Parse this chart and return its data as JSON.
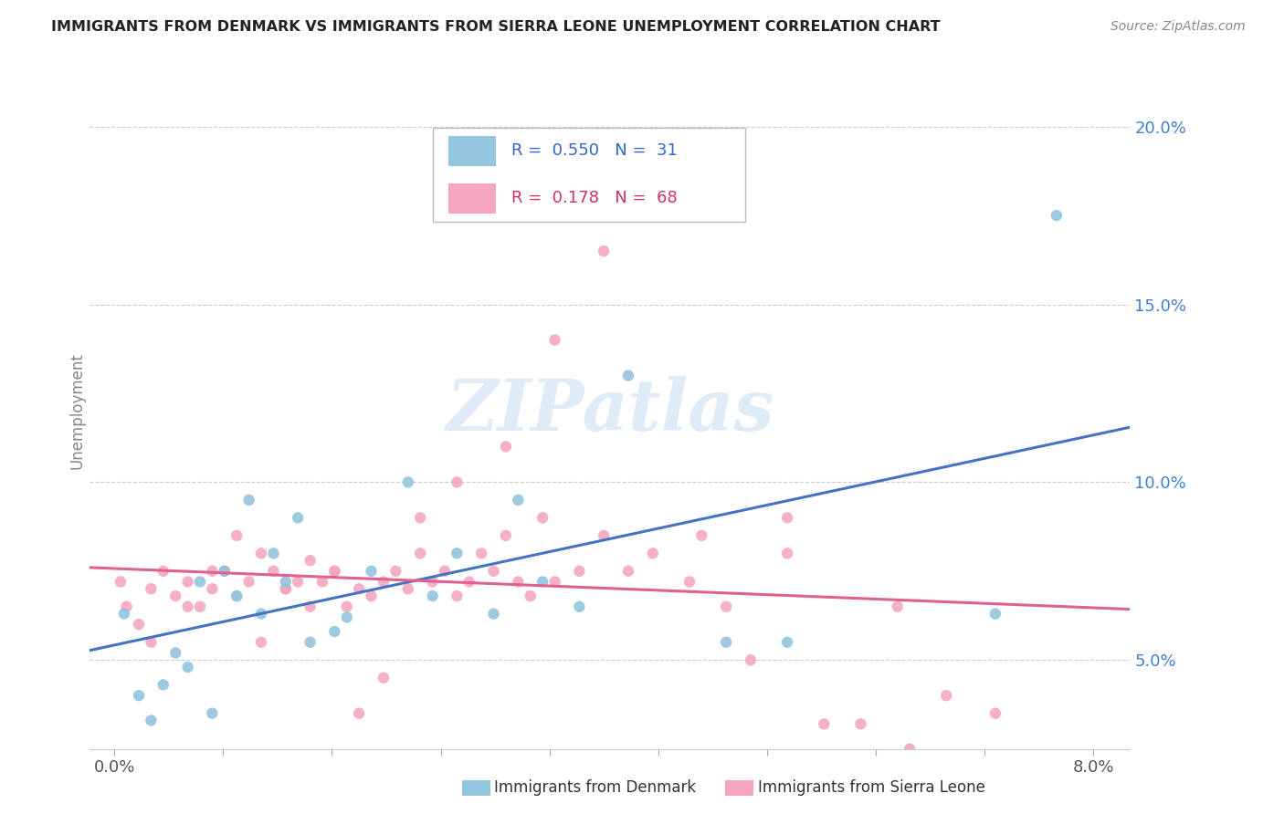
{
  "title": "IMMIGRANTS FROM DENMARK VS IMMIGRANTS FROM SIERRA LEONE UNEMPLOYMENT CORRELATION CHART",
  "source_text": "Source: ZipAtlas.com",
  "ylabel": "Unemployment",
  "watermark": "ZIPatlas",
  "denmark_color": "#92c5de",
  "sierra_color": "#f4a6c0",
  "denmark_line_color": "#4472c4",
  "sierra_line_color": "#e06090",
  "ylim": [
    0.025,
    0.215
  ],
  "xlim": [
    -0.002,
    0.083
  ],
  "ytick_vals": [
    0.05,
    0.1,
    0.15,
    0.2
  ],
  "denmark_x": [
    0.0008,
    0.002,
    0.003,
    0.004,
    0.005,
    0.006,
    0.007,
    0.008,
    0.009,
    0.01,
    0.011,
    0.012,
    0.013,
    0.014,
    0.015,
    0.016,
    0.018,
    0.019,
    0.021,
    0.024,
    0.026,
    0.028,
    0.031,
    0.033,
    0.035,
    0.038,
    0.042,
    0.05,
    0.055,
    0.072,
    0.077
  ],
  "denmark_y": [
    0.063,
    0.04,
    0.033,
    0.043,
    0.052,
    0.048,
    0.072,
    0.035,
    0.075,
    0.068,
    0.095,
    0.063,
    0.08,
    0.072,
    0.09,
    0.055,
    0.058,
    0.062,
    0.075,
    0.1,
    0.068,
    0.08,
    0.063,
    0.095,
    0.072,
    0.065,
    0.13,
    0.055,
    0.055,
    0.063,
    0.175
  ],
  "sierra_x": [
    0.0005,
    0.001,
    0.002,
    0.003,
    0.004,
    0.005,
    0.006,
    0.007,
    0.008,
    0.009,
    0.01,
    0.011,
    0.012,
    0.013,
    0.014,
    0.015,
    0.016,
    0.017,
    0.018,
    0.019,
    0.02,
    0.021,
    0.022,
    0.023,
    0.024,
    0.025,
    0.026,
    0.027,
    0.028,
    0.029,
    0.03,
    0.031,
    0.032,
    0.033,
    0.034,
    0.035,
    0.036,
    0.038,
    0.04,
    0.042,
    0.044,
    0.047,
    0.05,
    0.052,
    0.055,
    0.058,
    0.061,
    0.064,
    0.068,
    0.072,
    0.003,
    0.006,
    0.008,
    0.01,
    0.012,
    0.014,
    0.016,
    0.018,
    0.02,
    0.022,
    0.025,
    0.028,
    0.032,
    0.036,
    0.04,
    0.048,
    0.055,
    0.065
  ],
  "sierra_y": [
    0.072,
    0.065,
    0.06,
    0.07,
    0.075,
    0.068,
    0.072,
    0.065,
    0.07,
    0.075,
    0.068,
    0.072,
    0.08,
    0.075,
    0.07,
    0.072,
    0.078,
    0.072,
    0.075,
    0.065,
    0.07,
    0.068,
    0.072,
    0.075,
    0.07,
    0.08,
    0.072,
    0.075,
    0.068,
    0.072,
    0.08,
    0.075,
    0.085,
    0.072,
    0.068,
    0.09,
    0.072,
    0.075,
    0.085,
    0.075,
    0.08,
    0.072,
    0.065,
    0.05,
    0.08,
    0.032,
    0.032,
    0.065,
    0.04,
    0.035,
    0.055,
    0.065,
    0.075,
    0.085,
    0.055,
    0.07,
    0.065,
    0.075,
    0.035,
    0.045,
    0.09,
    0.1,
    0.11,
    0.14,
    0.165,
    0.085,
    0.09,
    0.025
  ]
}
